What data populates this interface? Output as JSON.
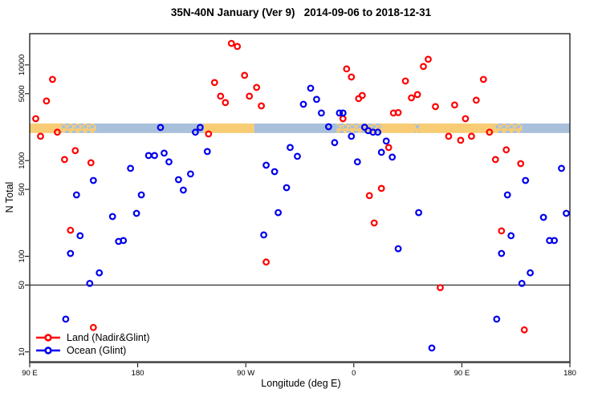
{
  "chart": {
    "title": "35N-40N January (Ver 9)   2014-09-06 to 2018-12-31",
    "xlabel": "Longitude (deg E)",
    "ylabel": "N Total"
  },
  "legend": {
    "items": [
      {
        "label": "Land (Nadir&Glint)",
        "color": "#ff0000"
      },
      {
        "label": "Ocean (Glint)",
        "color": "#0000ee"
      }
    ]
  },
  "chart_data": {
    "type": "scatter",
    "title": "35N-40N January (Ver 9)   2014-09-06 to 2018-12-31",
    "xlabel": "Longitude (deg E)",
    "ylabel": "N Total",
    "grid": false,
    "legend_position": "bottom-left",
    "x_axis": {
      "xlim": [
        90,
        540
      ],
      "ticks": [
        90,
        180,
        270,
        360,
        450,
        540
      ],
      "tick_labels": [
        "90 E",
        "180",
        "90 W",
        "0",
        "90 E",
        "180"
      ],
      "note": "longitude axis spans 450 deg east from 90E; the 90E-180 sector is plotted twice"
    },
    "y_axis": {
      "scale": "log",
      "ylim": [
        7.9,
        21200
      ],
      "ticks": [
        10,
        50,
        100,
        500,
        1000,
        5000,
        10000
      ],
      "tick_labels": [
        "10",
        "50",
        "100",
        "500",
        "1000",
        "5000",
        "10000"
      ]
    },
    "reference_line_y": 50,
    "surface_strip": {
      "description": "land/ocean map band across 35N-40N",
      "n_top": 2440,
      "n_bottom": 1940,
      "land_color": "#f8cc74",
      "ocean_color": "#a9c0db",
      "segments": [
        {
          "from": 90,
          "to": 116,
          "surface": "land"
        },
        {
          "from": 116,
          "to": 145,
          "surface": "coast"
        },
        {
          "from": 145,
          "to": 235,
          "surface": "ocean"
        },
        {
          "from": 235,
          "to": 277,
          "surface": "land"
        },
        {
          "from": 277,
          "to": 346,
          "surface": "ocean"
        },
        {
          "from": 346,
          "to": 383,
          "surface": "coast"
        },
        {
          "from": 383,
          "to": 411,
          "surface": "land"
        },
        {
          "from": 411,
          "to": 415,
          "surface": "coast"
        },
        {
          "from": 415,
          "to": 478,
          "surface": "land"
        },
        {
          "from": 478,
          "to": 500,
          "surface": "coast"
        },
        {
          "from": 500,
          "to": 539.5,
          "surface": "ocean"
        }
      ]
    },
    "series": [
      {
        "name": "Land (Nadir&Glint)",
        "color": "#ff0000",
        "marker": "open-circle",
        "points": [
          [
            95,
            2740
          ],
          [
            99,
            1795
          ],
          [
            104,
            4200
          ],
          [
            109,
            7060
          ],
          [
            113,
            1980
          ],
          [
            119,
            1026
          ],
          [
            124,
            187
          ],
          [
            128,
            1270
          ],
          [
            141,
            950
          ],
          [
            143,
            18
          ],
          [
            239,
            1900
          ],
          [
            244,
            6540
          ],
          [
            249,
            4710
          ],
          [
            253,
            4040
          ],
          [
            258,
            16800
          ],
          [
            263,
            15600
          ],
          [
            269,
            7780
          ],
          [
            273,
            4710
          ],
          [
            279,
            5820
          ],
          [
            283,
            3730
          ],
          [
            287,
            87
          ],
          [
            351,
            2740
          ],
          [
            354,
            9080
          ],
          [
            358,
            7480
          ],
          [
            364,
            4450
          ],
          [
            367,
            4800
          ],
          [
            373,
            430
          ],
          [
            377,
            223
          ],
          [
            383,
            512
          ],
          [
            389,
            1370
          ],
          [
            393,
            3140
          ],
          [
            397,
            3170
          ],
          [
            403,
            6790
          ],
          [
            408,
            4530
          ],
          [
            413,
            4900
          ],
          [
            418,
            9620
          ],
          [
            422,
            11450
          ],
          [
            428,
            3670
          ],
          [
            432,
            47
          ],
          [
            439,
            1795
          ],
          [
            444,
            3810
          ],
          [
            449,
            1630
          ],
          [
            453,
            2740
          ],
          [
            458,
            1795
          ],
          [
            462,
            4280
          ],
          [
            468,
            7060
          ],
          [
            473,
            1980
          ],
          [
            478,
            1026
          ],
          [
            483,
            184
          ],
          [
            487,
            1295
          ],
          [
            499,
            930
          ],
          [
            502,
            17
          ]
        ]
      },
      {
        "name": "Ocean (Glint)",
        "color": "#0000ee",
        "marker": "open-circle",
        "points": [
          [
            120,
            22
          ],
          [
            124,
            107
          ],
          [
            129,
            438
          ],
          [
            132,
            164
          ],
          [
            140,
            52
          ],
          [
            143,
            620
          ],
          [
            148,
            67
          ],
          [
            159,
            260
          ],
          [
            164,
            143
          ],
          [
            168,
            146
          ],
          [
            174,
            830
          ],
          [
            179,
            281
          ],
          [
            183,
            438
          ],
          [
            189,
            1130
          ],
          [
            194,
            1130
          ],
          [
            199,
            2220
          ],
          [
            202,
            1197
          ],
          [
            206,
            970
          ],
          [
            214,
            632
          ],
          [
            218,
            492
          ],
          [
            224,
            724
          ],
          [
            228,
            1980
          ],
          [
            232,
            2220
          ],
          [
            238,
            1245
          ],
          [
            285,
            167
          ],
          [
            287,
            895
          ],
          [
            294,
            767
          ],
          [
            297,
            286
          ],
          [
            304,
            521
          ],
          [
            307,
            1370
          ],
          [
            313,
            1107
          ],
          [
            318,
            3880
          ],
          [
            324,
            5710
          ],
          [
            329,
            4365
          ],
          [
            333,
            3140
          ],
          [
            339,
            2260
          ],
          [
            344,
            1540
          ],
          [
            348,
            3140
          ],
          [
            351,
            3140
          ],
          [
            358,
            1795
          ],
          [
            363,
            970
          ],
          [
            369,
            2230
          ],
          [
            372,
            2055
          ],
          [
            376,
            1980
          ],
          [
            380,
            1980
          ],
          [
            383,
            1220
          ],
          [
            387,
            1600
          ],
          [
            392,
            1087
          ],
          [
            397,
            120
          ],
          [
            414,
            286
          ],
          [
            425,
            11
          ],
          [
            479,
            22
          ],
          [
            483,
            107
          ],
          [
            488,
            438
          ],
          [
            491,
            164
          ],
          [
            500,
            52
          ],
          [
            503,
            620
          ],
          [
            507,
            67
          ],
          [
            518,
            255
          ],
          [
            523,
            146
          ],
          [
            527,
            146
          ],
          [
            533,
            830
          ],
          [
            537,
            281
          ]
        ]
      }
    ]
  }
}
